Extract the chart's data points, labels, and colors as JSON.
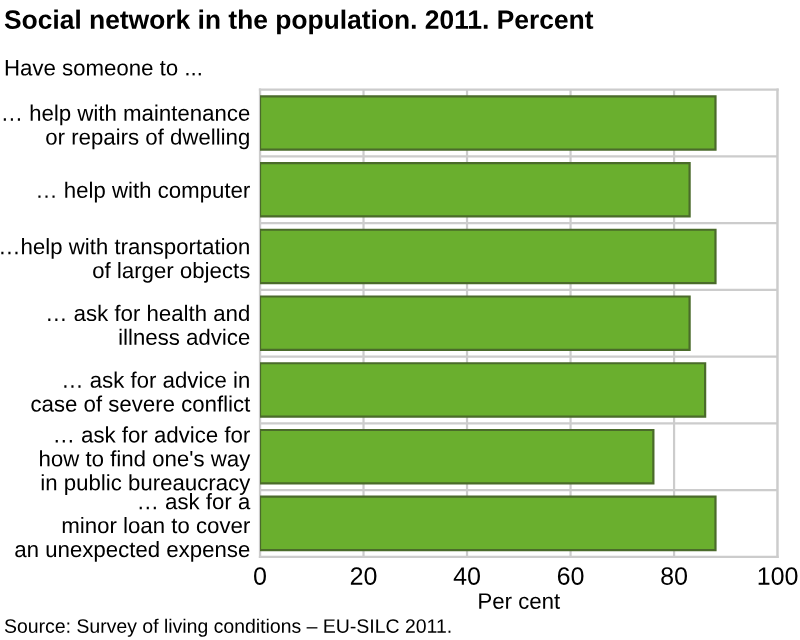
{
  "chart_data": {
    "type": "bar",
    "orientation": "horizontal",
    "title": "Social network in the population. 2011. Percent",
    "ylabel": "Have someone to ...",
    "xlabel": "Per cent",
    "categories": [
      "… help with maintenance\nor repairs of dwelling",
      "… help with computer",
      "…help with transportation\nof larger objects",
      "… ask for health and\nillness advice",
      "… ask for advice in\ncase of severe conflict",
      "… ask for advice for\nhow to find one's way\nin public bureaucracy",
      "… ask for a\nminor loan to cover\nan unexpected expense"
    ],
    "values": [
      88,
      83,
      88,
      83,
      86,
      76,
      88
    ],
    "color": "#6aaf2e",
    "xlim": [
      0,
      100
    ],
    "xticks": [
      0,
      20,
      40,
      60,
      80,
      100
    ],
    "grid": true,
    "legend": false,
    "annotations": [
      "Source: Survey of living conditions – EU-SILC 2011."
    ]
  }
}
